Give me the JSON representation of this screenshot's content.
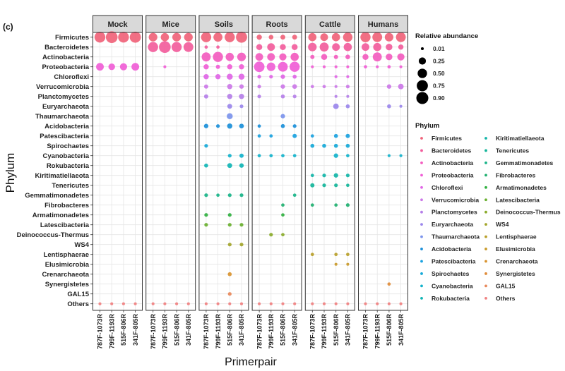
{
  "panel_label": "(c)",
  "chart_data": {
    "type": "scatter",
    "subtype": "bubble-facet",
    "xlabel": "Primerpair",
    "ylabel": "Phylum",
    "grid": true,
    "legend_placement": "right",
    "facets": [
      "Mock",
      "Mice",
      "Soils",
      "Roots",
      "Cattle",
      "Humans"
    ],
    "primerpairs": [
      "787F-1073R",
      "799F-1193R",
      "515F-806R",
      "341F-805R"
    ],
    "phyla": [
      "Firmicutes",
      "Bacteroidetes",
      "Actinobacteria",
      "Proteobacteria",
      "Chloroflexi",
      "Verrucomicrobia",
      "Planctomycetes",
      "Euryarchaeota",
      "Thaumarchaeota",
      "Acidobacteria",
      "Patescibacteria",
      "Spirochaetes",
      "Cyanobacteria",
      "Rokubacteria",
      "Kiritimatiellaeota",
      "Tenericutes",
      "Gemmatimonadetes",
      "Fibrobacteres",
      "Armatimonadetes",
      "Latescibacteria",
      "Deinococcus-Thermus",
      "WS4",
      "Lentisphaerae",
      "Elusimicrobia",
      "Crenarchaeota",
      "Synergistetes",
      "GAL15",
      "Others"
    ],
    "phylum_colors": [
      "#f0637a",
      "#f25d9c",
      "#f35cbf",
      "#f05ed6",
      "#e066e6",
      "#cc78e8",
      "#b57fe8",
      "#9b87ec",
      "#7b94ec",
      "#1a8fd9",
      "#1aa2e0",
      "#16a9d8",
      "#14b3cc",
      "#10b5b5",
      "#12b5a8",
      "#14b59a",
      "#18b488",
      "#20b070",
      "#30b040",
      "#6ab030",
      "#8aab2a",
      "#a3a52a",
      "#b9a02a",
      "#c99a2a",
      "#d99430",
      "#e08c3a",
      "#e8885a",
      "#f08080"
    ],
    "relative_abundance": {
      "Mock": {
        "Firmicutes": [
          0.7,
          0.85,
          0.7,
          0.75
        ],
        "Proteobacteria": [
          0.3,
          0.2,
          0.25,
          0.3
        ],
        "Others": [
          0.01,
          0.01,
          0.01,
          0.01
        ]
      },
      "Mice": {
        "Firmicutes": [
          0.4,
          0.35,
          0.4,
          0.4
        ],
        "Bacteroidetes": [
          0.6,
          0.85,
          0.6,
          0.55
        ],
        "Proteobacteria": [
          0,
          0.01,
          0,
          0
        ],
        "Others": [
          0.01,
          0.01,
          0.01,
          0.01
        ]
      },
      "Soils": {
        "Firmicutes": [
          0.6,
          0.45,
          0.6,
          0.75
        ],
        "Bacteroidetes": [
          0.02,
          0.02,
          0,
          0
        ],
        "Actinobacteria": [
          0.45,
          0.6,
          0.35,
          0.4
        ],
        "Proteobacteria": [
          0.1,
          0.05,
          0.1,
          0.1
        ],
        "Chloroflexi": [
          0.1,
          0.1,
          0.15,
          0.15
        ],
        "Verrucomicrobia": [
          0.05,
          0,
          0.1,
          0.06
        ],
        "Planctomycetes": [
          0.05,
          0,
          0.1,
          0.1
        ],
        "Euryarchaeota": [
          0,
          0,
          0.08,
          0.03
        ],
        "Thaumarchaeota": [
          0,
          0,
          0.15,
          0
        ],
        "Acidobacteria": [
          0.06,
          0.03,
          0.1,
          0.07
        ],
        "Spirochaetes": [
          0.03,
          0,
          0,
          0
        ],
        "Cyanobacteria": [
          0,
          0,
          0.03,
          0.05
        ],
        "Rokubacteria": [
          0.04,
          0,
          0.08,
          0.06
        ],
        "Gemmatimonadetes": [
          0.03,
          0.02,
          0.03,
          0.03
        ],
        "Armatimonadetes": [
          0.03,
          0,
          0.03,
          0
        ],
        "Latescibacteria": [
          0.03,
          0,
          0.03,
          0.03
        ],
        "WS4": [
          0,
          0,
          0.03,
          0.03
        ],
        "Crenarchaeota": [
          0,
          0,
          0.04,
          0
        ],
        "GAL15": [
          0,
          0,
          0.03,
          0
        ],
        "Others": [
          0.01,
          0.01,
          0.01,
          0.01
        ]
      },
      "Roots": {
        "Firmicutes": [
          0.1,
          0.07,
          0.08,
          0.08
        ],
        "Bacteroidetes": [
          0.15,
          0.3,
          0.15,
          0.15
        ],
        "Actinobacteria": [
          0.3,
          0.3,
          0.25,
          0.35
        ],
        "Proteobacteria": [
          0.65,
          0.4,
          0.55,
          0.6
        ],
        "Chloroflexi": [
          0.03,
          0.03,
          0.06,
          0.04
        ],
        "Verrucomicrobia": [
          0.03,
          0,
          0.06,
          0.07
        ],
        "Planctomycetes": [
          0.03,
          0,
          0.04,
          0.03
        ],
        "Thaumarchaeota": [
          0,
          0,
          0.06,
          0
        ],
        "Acidobacteria": [
          0.02,
          0,
          0.04,
          0.03
        ],
        "Patescibacteria": [
          0.02,
          0.02,
          0,
          0.05
        ],
        "Cyanobacteria": [
          0.02,
          0.02,
          0.02,
          0.02
        ],
        "Gemmatimonadetes": [
          0,
          0,
          0,
          0.02
        ],
        "Fibrobacteres": [
          0,
          0,
          0.02,
          0
        ],
        "Armatimonadetes": [
          0,
          0,
          0.02,
          0
        ],
        "Deinococcus-Thermus": [
          0,
          0.03,
          0.02,
          0
        ],
        "Others": [
          0.01,
          0.01,
          0.01,
          0.01
        ]
      },
      "Cattle": {
        "Firmicutes": [
          0.35,
          0.3,
          0.35,
          0.5
        ],
        "Bacteroidetes": [
          0.4,
          0.45,
          0.3,
          0.35
        ],
        "Actinobacteria": [
          0.05,
          0.15,
          0.05,
          0.07
        ],
        "Proteobacteria": [
          0.01,
          0.01,
          0.01,
          0.01
        ],
        "Chloroflexi": [
          0,
          0,
          0.01,
          0.01
        ],
        "Verrucomicrobia": [
          0.02,
          0.02,
          0.01,
          0.03
        ],
        "Planctomycetes": [
          0,
          0,
          0.01,
          0.01
        ],
        "Euryarchaeota": [
          0,
          0,
          0.12,
          0.04
        ],
        "Patescibacteria": [
          0.02,
          0,
          0.04,
          0.05
        ],
        "Spirochaetes": [
          0.04,
          0.04,
          0.04,
          0.04
        ],
        "Cyanobacteria": [
          0,
          0,
          0.06,
          0.02
        ],
        "Kiritimatiellaeota": [
          0.02,
          0.03,
          0.06,
          0.03
        ],
        "Tenericutes": [
          0.05,
          0.03,
          0.03,
          0.02
        ],
        "Fibrobacteres": [
          0.02,
          0,
          0.02,
          0.03
        ],
        "Lentisphaerae": [
          0.02,
          0,
          0.02,
          0.02
        ],
        "Elusimicrobia": [
          0,
          0,
          0.01,
          0.01
        ],
        "Others": [
          0.01,
          0.01,
          0.01,
          0.01
        ]
      },
      "Humans": {
        "Firmicutes": [
          0.6,
          0.55,
          0.4,
          0.55
        ],
        "Bacteroidetes": [
          0.3,
          0.35,
          0.2,
          0.1
        ],
        "Actinobacteria": [
          0.15,
          0.45,
          0.2,
          0.25
        ],
        "Proteobacteria": [
          0.02,
          0.01,
          0.02,
          0.01
        ],
        "Verrucomicrobia": [
          0,
          0,
          0.06,
          0.12
        ],
        "Euryarchaeota": [
          0,
          0,
          0.04,
          0.01
        ],
        "Cyanobacteria": [
          0,
          0,
          0.01,
          0.01
        ],
        "Synergistetes": [
          0,
          0,
          0.02,
          0
        ],
        "Others": [
          0.01,
          0.01,
          0.01,
          0.01
        ]
      }
    },
    "size_legend": {
      "title": "Relative abundance",
      "values": [
        0.01,
        0.25,
        0.5,
        0.75,
        0.9
      ],
      "labels": [
        "0.01",
        "0.25",
        "0.50",
        "0.75",
        "0.90"
      ]
    },
    "color_legend": {
      "title": "Phylum"
    }
  }
}
